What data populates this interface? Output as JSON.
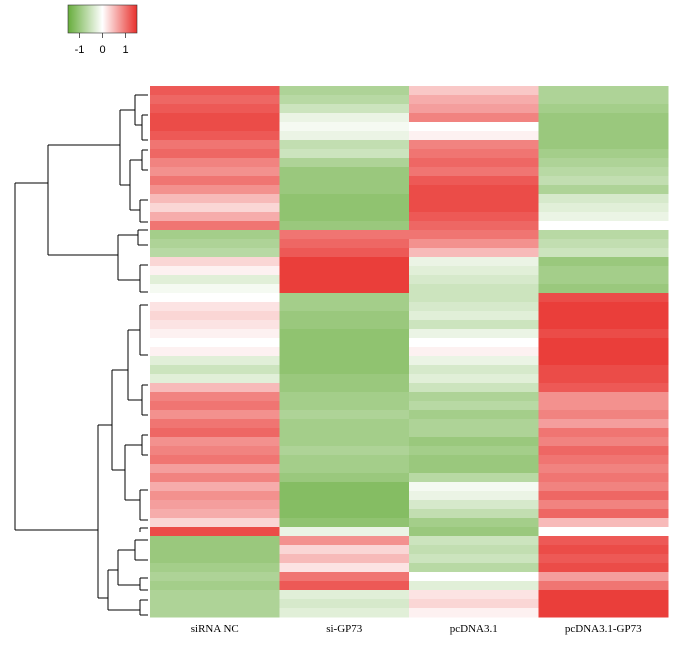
{
  "chart_data": {
    "type": "heatmap",
    "columns": [
      "siRNA NC",
      "si-GP73",
      "pcDNA3.1",
      "pcDNA3.1-GP73"
    ],
    "values": [
      [
        1.2,
        -0.8,
        0.4,
        -0.8
      ],
      [
        1.1,
        -0.7,
        0.6,
        -0.8
      ],
      [
        1.2,
        -0.5,
        0.7,
        -0.9
      ],
      [
        1.3,
        -0.2,
        0.9,
        -1.0
      ],
      [
        1.3,
        -0.1,
        0.0,
        -1.0
      ],
      [
        1.2,
        -0.2,
        0.1,
        -1.0
      ],
      [
        1.0,
        -0.6,
        0.9,
        -1.0
      ],
      [
        1.1,
        -0.5,
        1.0,
        -0.9
      ],
      [
        0.9,
        -0.8,
        1.1,
        -0.8
      ],
      [
        0.8,
        -1.0,
        1.0,
        -0.7
      ],
      [
        1.0,
        -1.0,
        1.2,
        -0.6
      ],
      [
        0.8,
        -1.0,
        1.3,
        -0.8
      ],
      [
        0.5,
        -1.1,
        1.3,
        -0.4
      ],
      [
        0.3,
        -1.1,
        1.3,
        -0.3
      ],
      [
        0.6,
        -1.1,
        1.2,
        -0.2
      ],
      [
        1.0,
        -1.0,
        1.1,
        0.0
      ],
      [
        -0.9,
        1.0,
        1.0,
        -0.7
      ],
      [
        -0.8,
        1.1,
        0.8,
        -0.6
      ],
      [
        -0.7,
        1.2,
        0.5,
        -0.5
      ],
      [
        0.3,
        1.4,
        -0.2,
        -1.0
      ],
      [
        0.1,
        1.4,
        -0.3,
        -0.9
      ],
      [
        -0.3,
        1.4,
        -0.4,
        -0.9
      ],
      [
        -0.1,
        1.4,
        -0.5,
        -1.0
      ],
      [
        0.0,
        -0.9,
        -0.5,
        1.3
      ],
      [
        0.2,
        -0.9,
        -0.4,
        1.4
      ],
      [
        0.3,
        -1.0,
        -0.3,
        1.4
      ],
      [
        0.2,
        -1.0,
        -0.5,
        1.4
      ],
      [
        0.1,
        -1.1,
        -0.2,
        1.3
      ],
      [
        0.0,
        -1.1,
        0.0,
        1.4
      ],
      [
        0.1,
        -1.1,
        0.1,
        1.4
      ],
      [
        -0.3,
        -1.1,
        -0.2,
        1.4
      ],
      [
        -0.5,
        -1.1,
        -0.4,
        1.3
      ],
      [
        -0.3,
        -1.0,
        -0.3,
        1.3
      ],
      [
        0.5,
        -1.0,
        -0.5,
        1.2
      ],
      [
        0.9,
        -0.9,
        -0.8,
        0.8
      ],
      [
        1.0,
        -0.9,
        -0.7,
        0.8
      ],
      [
        0.8,
        -0.8,
        -0.9,
        0.9
      ],
      [
        1.0,
        -0.9,
        -0.8,
        0.7
      ],
      [
        1.1,
        -0.9,
        -0.8,
        1.0
      ],
      [
        0.8,
        -0.9,
        -1.0,
        0.9
      ],
      [
        0.9,
        -0.8,
        -0.9,
        1.1
      ],
      [
        1.0,
        -0.9,
        -1.0,
        1.0
      ],
      [
        0.7,
        -0.9,
        -1.0,
        0.9
      ],
      [
        0.9,
        -1.0,
        -0.7,
        1.0
      ],
      [
        0.6,
        -1.2,
        -0.1,
        0.9
      ],
      [
        0.8,
        -1.2,
        -0.2,
        1.1
      ],
      [
        0.7,
        -1.2,
        -0.4,
        0.9
      ],
      [
        0.6,
        -1.2,
        -0.6,
        1.1
      ],
      [
        0.3,
        -1.1,
        -0.9,
        0.5
      ],
      [
        1.3,
        -0.2,
        -1.0,
        0.0
      ],
      [
        -1.0,
        0.8,
        -0.5,
        1.2
      ],
      [
        -1.0,
        0.3,
        -0.6,
        1.3
      ],
      [
        -1.0,
        0.5,
        -0.5,
        1.2
      ],
      [
        -0.9,
        0.2,
        -0.7,
        1.3
      ],
      [
        -0.8,
        1.0,
        0.0,
        0.7
      ],
      [
        -0.9,
        1.2,
        -0.3,
        1.0
      ],
      [
        -0.8,
        -0.3,
        0.2,
        1.4
      ],
      [
        -0.8,
        -0.4,
        0.3,
        1.4
      ],
      [
        -0.8,
        -0.3,
        0.1,
        1.4
      ]
    ],
    "zlim": [
      -1.5,
      1.5
    ],
    "colorbar_ticks": [
      -1,
      0,
      1
    ],
    "colors": {
      "low": "#67ad3c",
      "mid": "#ffffff",
      "high": "#e8302c"
    }
  }
}
